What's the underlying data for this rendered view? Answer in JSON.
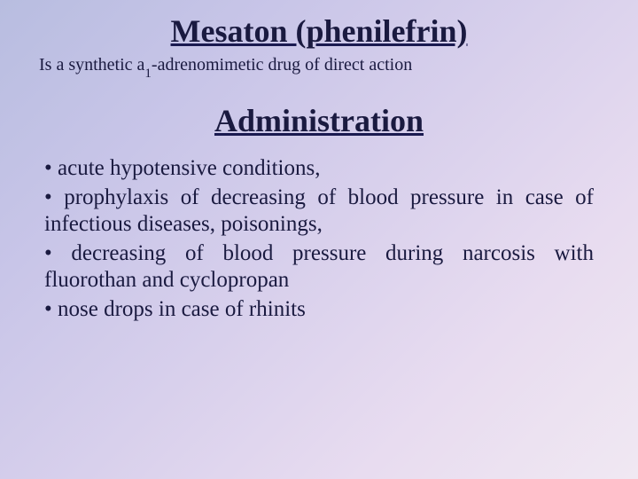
{
  "title1": "Mesaton (phenilefrin)",
  "subtitle_pre": "Is a synthetic a",
  "subtitle_sub": "1",
  "subtitle_post": "-adrenomimetic drug of direct action",
  "title2": "Administration",
  "bullets": {
    "b1": "•  acute hypotensive conditions,",
    "b2": "•  prophylaxis of decreasing of blood pressure in case of infectious diseases, poisonings,",
    "b3": "• decreasing of blood pressure during narcosis with fluorothan and cyclopropan",
    "b4": "• nose drops in case of rhinits"
  },
  "colors": {
    "text": "#1a1a40",
    "bg_start": "#b8bde0",
    "bg_end": "#f0e8f2"
  },
  "fonts": {
    "title_size_pt": 36,
    "subtitle_size_pt": 20,
    "body_size_pt": 25,
    "family": "Times New Roman"
  }
}
